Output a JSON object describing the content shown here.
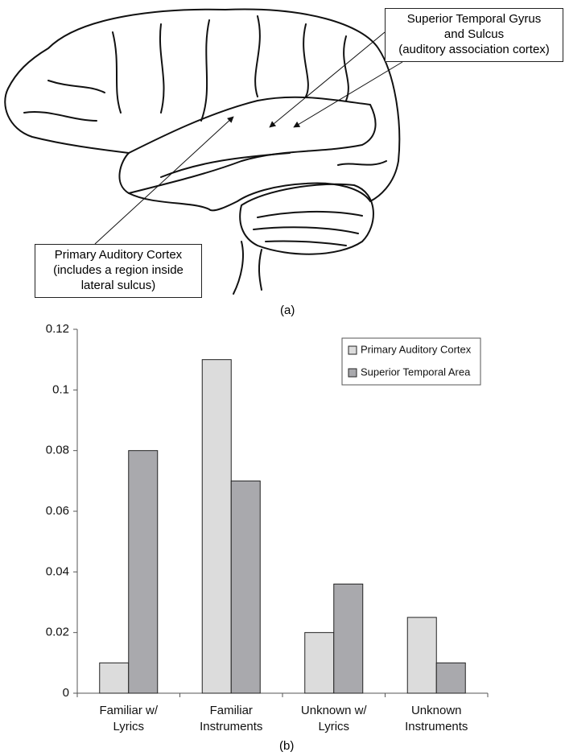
{
  "diagram": {
    "labels": [
      "Superior Temporal Gyrus\nand Sulcus\n(auditory association cortex)",
      "Primary Auditory Cortex\n(includes a region inside\nlateral sulcus)"
    ],
    "caption": "(a)"
  },
  "chart_data": {
    "type": "bar",
    "caption": "(b)",
    "categories": [
      "Familiar w/\nLyrics",
      "Familiar\nInstruments",
      "Unknown w/\nLyrics",
      "Unknown\nInstruments"
    ],
    "series": [
      {
        "name": "Primary Auditory Cortex",
        "color": "#dcdcdc",
        "values": [
          0.01,
          0.11,
          0.02,
          0.025
        ]
      },
      {
        "name": "Superior Temporal Area",
        "color": "#a9a9ad",
        "values": [
          0.08,
          0.07,
          0.036,
          0.01
        ]
      }
    ],
    "ylim": [
      0,
      0.12
    ],
    "yticks": [
      0,
      0.02,
      0.04,
      0.06,
      0.08,
      0.1,
      0.12
    ],
    "grid": false,
    "legend": "top-right"
  }
}
